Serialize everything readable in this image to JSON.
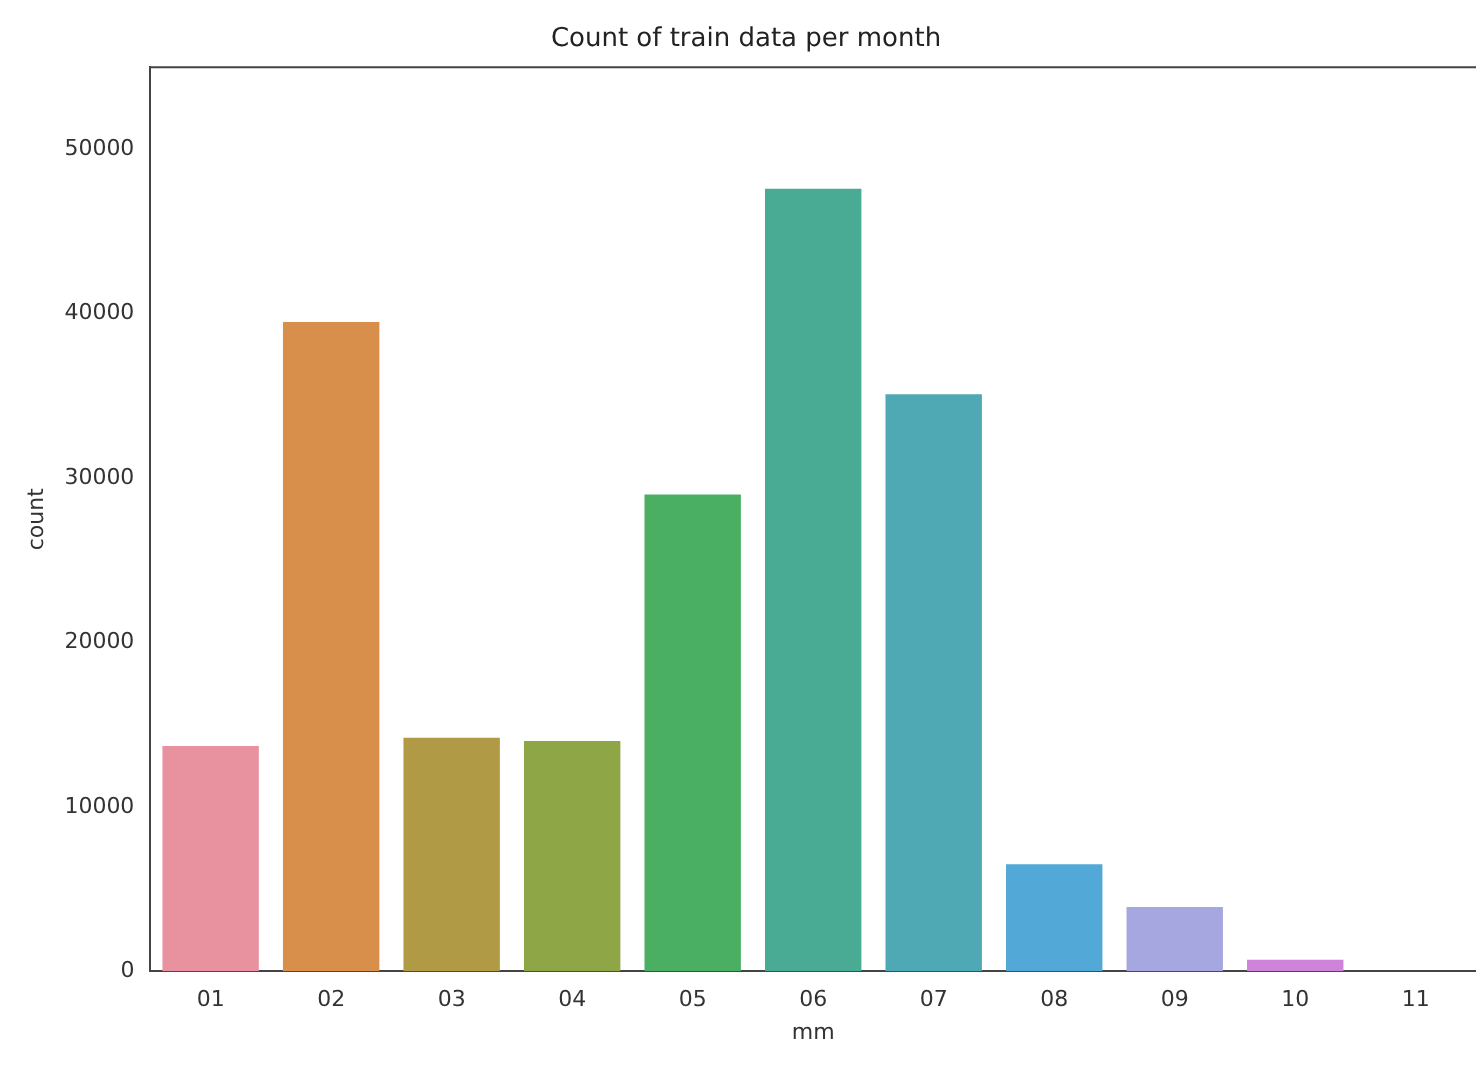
{
  "chart_data": {
    "type": "bar",
    "title": "Count of train data per month",
    "xlabel": "mm",
    "ylabel": "count",
    "categories": [
      "01",
      "02",
      "03",
      "04",
      "05",
      "06",
      "07",
      "08",
      "09",
      "10",
      "11"
    ],
    "values": [
      13700,
      39500,
      14200,
      14000,
      29000,
      47600,
      35100,
      6500,
      3900,
      700,
      0
    ],
    "colors": [
      "#e8929f",
      "#d98f4c",
      "#b09a45",
      "#8ea646",
      "#4aaf63",
      "#4aab94",
      "#4ea9b5",
      "#52a8d6",
      "#a6a6e1",
      "#cf84d9",
      "#e58fc6"
    ],
    "ylim": [
      0,
      55000
    ],
    "yticks": [
      0,
      10000,
      20000,
      30000,
      40000,
      50000
    ],
    "grid": false,
    "legend": false
  }
}
